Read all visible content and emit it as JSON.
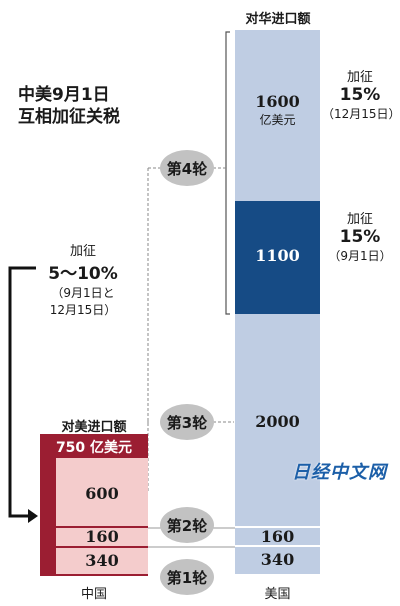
{
  "title": {
    "line1": "中美9月1日",
    "line2": "互相加征关税"
  },
  "us": {
    "header": "对华进口额",
    "country": "美国",
    "seg_1600_value": "1600",
    "seg_1600_unit": "亿美元",
    "seg_1100": "1100",
    "seg_2000": "2000",
    "seg_160": "160",
    "seg_340": "340",
    "tariff_top": {
      "label": "加征",
      "rate": "15%",
      "date": "（12月15日）"
    },
    "tariff_mid": {
      "label": "加征",
      "rate": "15%",
      "date": "（9月1日）"
    }
  },
  "china": {
    "header": "对美进口额",
    "country": "中国",
    "total": "750 亿美元",
    "seg_600": "600",
    "seg_160": "160",
    "seg_340": "340",
    "tariff": {
      "label": "加征",
      "rate": "5〜10%",
      "date_line1": "（9月1日と",
      "date_line2": "12月15日）"
    }
  },
  "rounds": {
    "r4": "第4轮",
    "r3": "第3轮",
    "r2": "第2轮",
    "r1": "第1轮"
  },
  "watermark": "日经中文网",
  "colors": {
    "us_light": "#bfcde3",
    "us_dark": "#164b85",
    "cn_dark": "#9b1e32",
    "cn_light": "#f4cccc",
    "round_circle": "#c2c2c2",
    "watermark": "#1c5fa8"
  }
}
